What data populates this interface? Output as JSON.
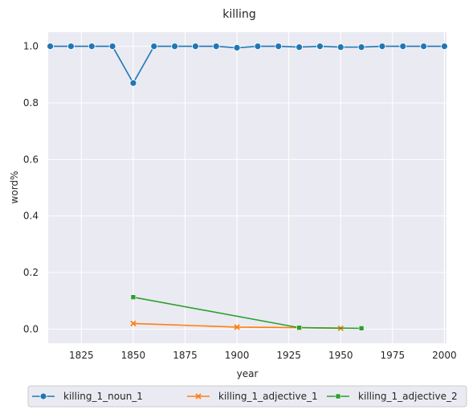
{
  "chart_data": {
    "type": "line",
    "title": "killing",
    "xlabel": "year",
    "ylabel": "word%",
    "xlim": [
      1809,
      2001
    ],
    "ylim": [
      -0.05,
      1.05
    ],
    "xticks": [
      1825,
      1850,
      1875,
      1900,
      1925,
      1950,
      1975,
      2000
    ],
    "yticks": [
      0.0,
      0.2,
      0.4,
      0.6,
      0.8,
      1.0
    ],
    "grid": true,
    "legend_position": "bottom-center",
    "series": [
      {
        "name": "killing_1_noun_1",
        "color": "#1f77b4",
        "marker": "circle",
        "x": [
          1810,
          1820,
          1830,
          1840,
          1850,
          1860,
          1870,
          1880,
          1890,
          1900,
          1910,
          1920,
          1930,
          1940,
          1950,
          1960,
          1970,
          1980,
          1990,
          2000
        ],
        "y": [
          1.0,
          1.0,
          1.0,
          1.0,
          0.87,
          1.0,
          1.0,
          1.0,
          1.0,
          0.995,
          1.0,
          1.0,
          0.997,
          1.0,
          0.997,
          0.997,
          1.0,
          1.0,
          1.0,
          1.0
        ]
      },
      {
        "name": "killing_1_adjective_1",
        "color": "#ff7f0e",
        "marker": "x",
        "x": [
          1850,
          1900,
          1930,
          1950
        ],
        "y": [
          0.02,
          0.007,
          0.005,
          0.003
        ]
      },
      {
        "name": "killing_1_adjective_2",
        "color": "#2ca02c",
        "marker": "square",
        "x": [
          1850,
          1930,
          1960
        ],
        "y": [
          0.113,
          0.005,
          0.003
        ]
      }
    ]
  }
}
